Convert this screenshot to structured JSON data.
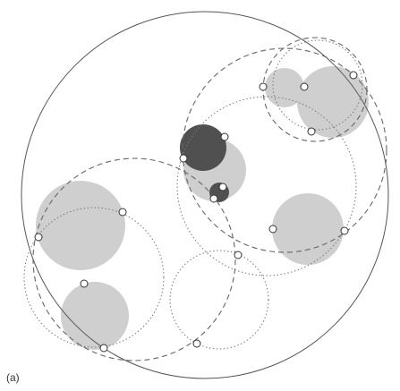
{
  "panel_label": "(a)",
  "colors": {
    "background": "#ffffff",
    "outline": "#555555",
    "light_disc": "#cfcfcf",
    "dark_disc": "#505050",
    "point_fill": "#ffffff",
    "point_stroke": "#333333"
  }
}
